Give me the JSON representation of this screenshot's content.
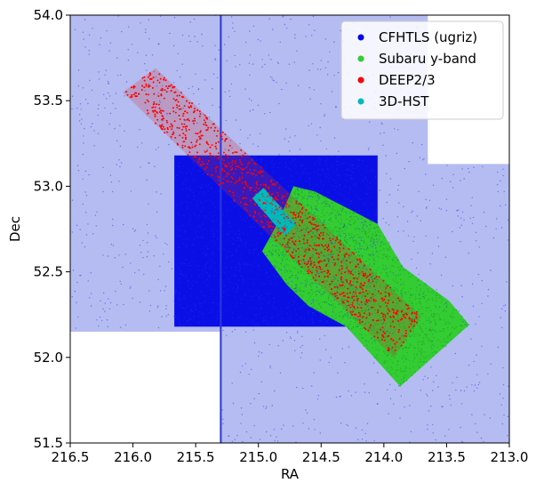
{
  "chart_data": {
    "type": "scatter",
    "title": "",
    "xlabel": "RA",
    "ylabel": "Dec",
    "xlim": [
      216.5,
      213.0
    ],
    "ylim": [
      51.5,
      54.0
    ],
    "x_inverted": true,
    "xticks": [
      "216.5",
      "216.0",
      "215.5",
      "215.0",
      "214.5",
      "214.0",
      "213.5",
      "213.0"
    ],
    "yticks": [
      "51.5",
      "52.0",
      "52.5",
      "53.0",
      "53.5",
      "54.0"
    ],
    "grid": false,
    "legend_position": "upper-right",
    "series": [
      {
        "name": "CFHTLS (ugriz)",
        "color": "#0000ff",
        "regions": [
          [
            [
              216.5,
              52.15
            ],
            [
              215.3,
              52.15
            ],
            [
              215.3,
              51.5
            ],
            [
              213.0,
              51.5
            ],
            [
              213.0,
              53.13
            ],
            [
              213.65,
              53.13
            ],
            [
              213.65,
              54.0
            ],
            [
              216.5,
              54.0
            ]
          ],
          [
            [
              215.67,
              52.18
            ],
            [
              214.05,
              52.18
            ],
            [
              214.05,
              53.18
            ],
            [
              215.67,
              53.18
            ]
          ]
        ]
      },
      {
        "name": "Subaru y-band",
        "color": "#33cc33",
        "regions": [
          [
            [
              214.97,
              52.62
            ],
            [
              214.78,
              52.43
            ],
            [
              214.6,
              52.3
            ],
            [
              214.3,
              52.18
            ],
            [
              213.87,
              51.83
            ],
            [
              213.32,
              52.19
            ],
            [
              213.48,
              52.33
            ],
            [
              213.85,
              52.53
            ],
            [
              214.05,
              52.78
            ],
            [
              214.55,
              52.97
            ],
            [
              214.72,
              53.0
            ],
            [
              214.85,
              52.78
            ]
          ]
        ]
      },
      {
        "name": "DEEP2/3",
        "color": "#ff0000",
        "regions": [
          [
            [
              216.08,
              53.55
            ],
            [
              215.82,
              53.69
            ],
            [
              213.7,
              52.24
            ],
            [
              213.92,
              52.0
            ]
          ]
        ]
      },
      {
        "name": "3D-HST",
        "color": "#00bbbb",
        "regions": [
          [
            [
              215.05,
              52.93
            ],
            [
              214.96,
              52.99
            ],
            [
              214.7,
              52.78
            ],
            [
              214.79,
              52.71
            ]
          ]
        ]
      }
    ]
  }
}
